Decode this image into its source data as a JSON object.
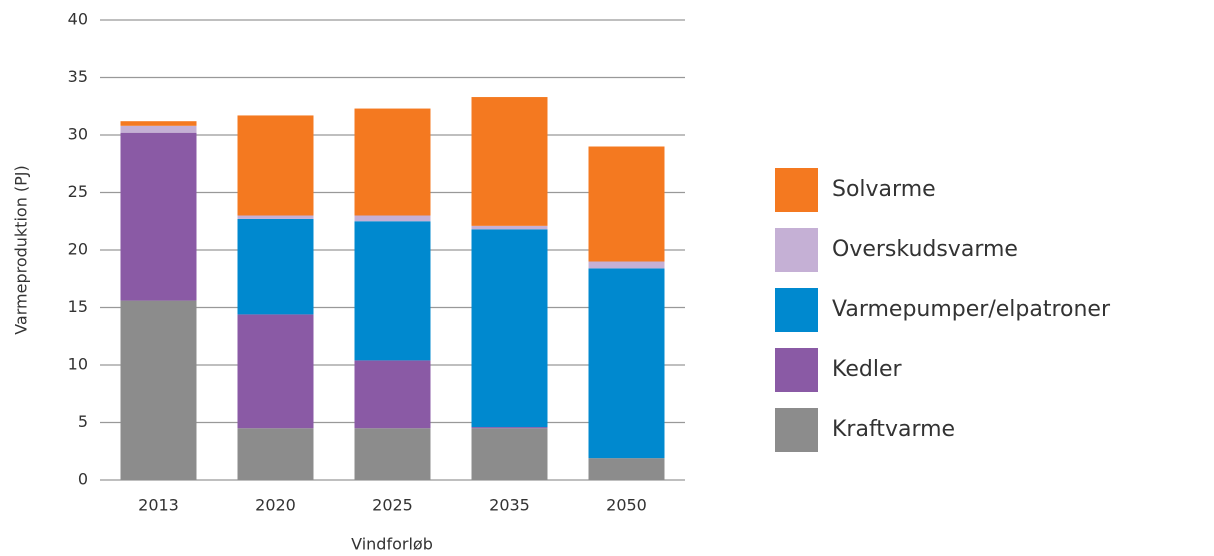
{
  "chart_data": {
    "type": "stacked_bar",
    "categories": [
      "2013",
      "2020",
      "2025",
      "2035",
      "2050"
    ],
    "series": [
      {
        "name": "Kraftvarme",
        "color": "#8c8c8c",
        "values": [
          15.6,
          4.5,
          4.5,
          4.5,
          1.9
        ]
      },
      {
        "name": "Kedler",
        "color": "#8a5aa5",
        "values": [
          14.6,
          9.9,
          5.9,
          0.1,
          0
        ]
      },
      {
        "name": "Varmepumper/elpatroner",
        "color": "#0089cf",
        "values": [
          0,
          8.3,
          12.1,
          17.2,
          16.5
        ]
      },
      {
        "name": "Overskudsvarme",
        "color": "#c5b0d5",
        "values": [
          0.6,
          0.3,
          0.5,
          0.3,
          0.6
        ]
      },
      {
        "name": "Solvarme",
        "color": "#f47920",
        "values": [
          0.4,
          8.7,
          9.3,
          11.2,
          10.0
        ]
      }
    ],
    "x_label": "Vindforløb",
    "y_label": "Varmeproduktion (PJ)",
    "ylim": [
      0,
      40
    ],
    "yticks": [
      0,
      5,
      10,
      15,
      20,
      25,
      30,
      35,
      40
    ],
    "grid": true
  }
}
